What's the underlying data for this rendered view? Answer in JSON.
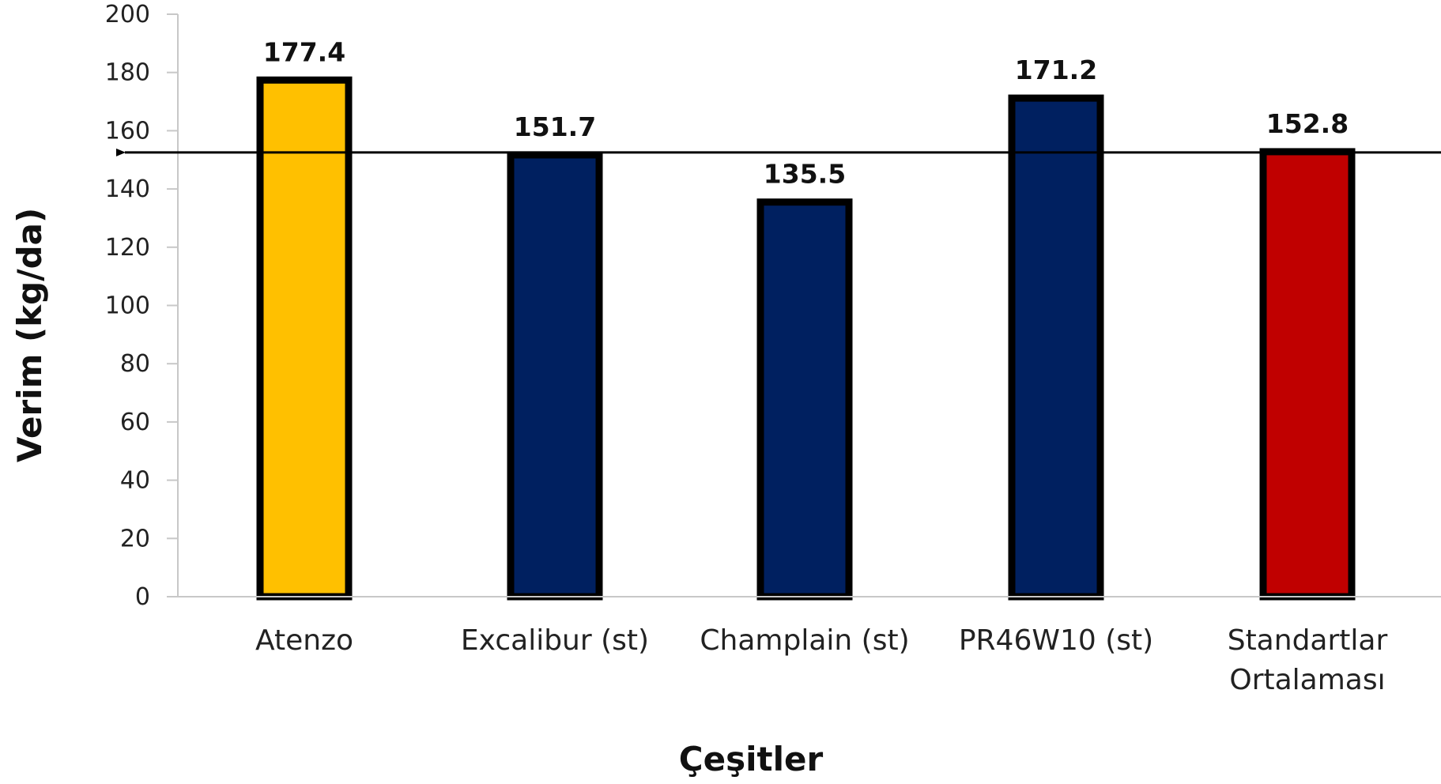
{
  "chart_data": {
    "type": "bar",
    "title": "",
    "xlabel": "Çeşitler",
    "ylabel": "Verim (kg/da)",
    "ylim": [
      0,
      200
    ],
    "yticks": [
      0,
      20,
      40,
      60,
      80,
      100,
      120,
      140,
      160,
      180,
      200
    ],
    "categories": [
      [
        "Atenzo"
      ],
      [
        "Excalibur (st)"
      ],
      [
        "Champlain (st)"
      ],
      [
        "PR46W10 (st)"
      ],
      [
        "Standartlar",
        "Ortalaması"
      ]
    ],
    "values": [
      177.4,
      151.7,
      135.5,
      171.2,
      152.8
    ],
    "data_labels": [
      "177.4",
      "151.7",
      "135.5",
      "171.2",
      "152.8"
    ],
    "bar_colors": [
      "#FFC000",
      "#002060",
      "#002060",
      "#002060",
      "#C00000"
    ],
    "bar_outline_color": "#000000",
    "reference_line": {
      "value": 152.8,
      "arrow": "left"
    },
    "grid": false,
    "legend": "none"
  }
}
